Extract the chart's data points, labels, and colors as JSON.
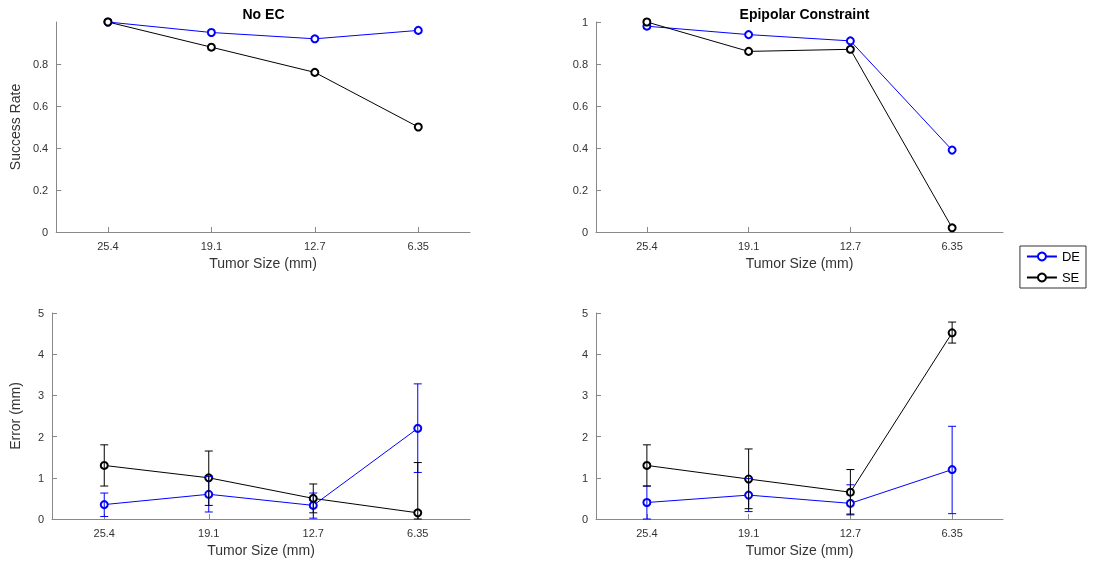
{
  "chart_data": [
    {
      "type": "line",
      "title": "No EC",
      "xlabel": "Tumor Size (mm)",
      "ylabel": "Success Rate",
      "categories": [
        "25.4",
        "19.1",
        "12.7",
        "6.35"
      ],
      "ylim": [
        0,
        1
      ],
      "yticks": [
        0,
        0.2,
        0.4,
        0.6,
        0.8
      ],
      "marker": "circle",
      "grid": false,
      "legend": false,
      "series": [
        {
          "color": "#0000ff",
          "values": [
            1,
            0.95,
            0.92,
            0.96
          ]
        },
        {
          "color": "#000000",
          "values": [
            1,
            0.88,
            0.76,
            0.5
          ]
        }
      ]
    },
    {
      "type": "line",
      "title": "Epipolar Constraint",
      "xlabel": "Tumor Size (mm)",
      "categories": [
        "25.4",
        "19.1",
        "12.7",
        "6.35"
      ],
      "ylim": [
        0,
        1
      ],
      "yticks": [
        0,
        0.2,
        0.4,
        0.6,
        0.8,
        1
      ],
      "marker": "circle",
      "grid": false,
      "legend": "right",
      "series": [
        {
          "name": "DE",
          "color": "#0000ff",
          "values": [
            0.98,
            0.94,
            0.91,
            0.39
          ]
        },
        {
          "name": "SE",
          "color": "#000000",
          "values": [
            1,
            0.86,
            0.87,
            0.02
          ]
        }
      ]
    },
    {
      "type": "line",
      "xlabel": "Tumor Size (mm)",
      "ylabel": "Error (mm)",
      "categories": [
        "25.4",
        "19.1",
        "12.7",
        "6.35"
      ],
      "ylim": [
        0,
        5
      ],
      "yticks": [
        0,
        1,
        2,
        3,
        4,
        5
      ],
      "marker": "circle",
      "grid": false,
      "legend": false,
      "series": [
        {
          "color": "#0000ff",
          "values": [
            0.35,
            0.6,
            0.33,
            2.2
          ],
          "errors": [
            [
              0.06,
              0.63
            ],
            [
              0.17,
              1.03
            ],
            [
              0.02,
              0.63
            ],
            [
              1.13,
              3.28
            ]
          ]
        },
        {
          "color": "#000000",
          "values": [
            1.3,
            1.0,
            0.5,
            0.15
          ],
          "errors": [
            [
              0.8,
              1.8
            ],
            [
              0.33,
              1.65
            ],
            [
              0.15,
              0.85
            ],
            [
              0,
              1.37
            ]
          ]
        }
      ]
    },
    {
      "type": "line",
      "xlabel": "Tumor Size (mm)",
      "categories": [
        "25.4",
        "19.1",
        "12.7",
        "6.35"
      ],
      "ylim": [
        0,
        5
      ],
      "yticks": [
        0,
        1,
        2,
        3,
        4,
        5
      ],
      "marker": "circle",
      "grid": false,
      "legend": false,
      "series": [
        {
          "color": "#0000ff",
          "values": [
            0.4,
            0.58,
            0.38,
            1.2
          ],
          "errors": [
            [
              0,
              0.8
            ],
            [
              0.18,
              0.98
            ],
            [
              0.1,
              0.83
            ],
            [
              0.13,
              2.25
            ]
          ]
        },
        {
          "color": "#000000",
          "values": [
            1.3,
            0.97,
            0.65,
            4.52
          ],
          "errors": [
            [
              0.8,
              1.8
            ],
            [
              0.25,
              1.7
            ],
            [
              0.12,
              1.2
            ],
            [
              4.27,
              4.78
            ]
          ]
        }
      ]
    }
  ]
}
